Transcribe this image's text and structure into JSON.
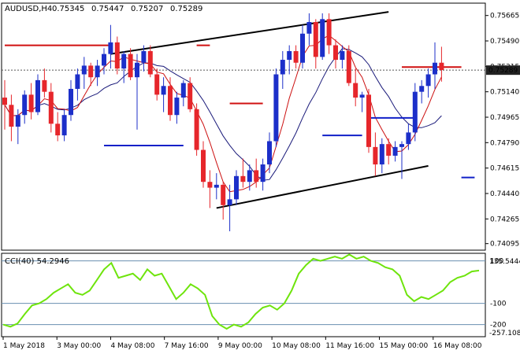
{
  "header": {
    "symbol": "AUDUSD,H4",
    "open": "0.75345",
    "high": "0.75447",
    "low": "0.75207",
    "close": "0.75289"
  },
  "cci_panel": {
    "label": "CCI(40) 54.2946",
    "max_label": "135.5444",
    "min_label": "-257.1088"
  },
  "colors": {
    "bull": "#1c2fc9",
    "bear": "#e6262b",
    "cci": "#6ee40c",
    "ma_fast": "#cc1010",
    "ma_slow": "#1a1a7a",
    "trendline": "#000000",
    "red_level": "#d01010",
    "blue_level": "#1020c8",
    "current_price_bg": "#222222"
  },
  "chart_data": [
    {
      "type": "candlestick",
      "symbol": "AUDUSD",
      "timeframe": "H4",
      "ylim": [
        0.7405,
        0.7575
      ],
      "y_ticks": [
        "0.75665",
        "0.75490",
        "0.75315",
        "0.75140",
        "0.74965",
        "0.74790",
        "0.74615",
        "0.74440",
        "0.74265",
        "0.74095"
      ],
      "x_ticks": [
        "1 May 2018",
        "3 May 00:00",
        "4 May 08:00",
        "7 May 16:00",
        "9 May 00:00",
        "10 May 08:00",
        "11 May 16:00",
        "15 May 00:00",
        "16 May 08:00"
      ],
      "current_price": "0.75289",
      "ohlc": [
        [
          0.751,
          0.7522,
          0.7488,
          0.7505
        ],
        [
          0.7505,
          0.7512,
          0.748,
          0.749
        ],
        [
          0.749,
          0.7502,
          0.7478,
          0.7498
        ],
        [
          0.7498,
          0.7515,
          0.7492,
          0.7512
        ],
        [
          0.7512,
          0.752,
          0.7495,
          0.75
        ],
        [
          0.75,
          0.7526,
          0.7498,
          0.7522
        ],
        [
          0.7522,
          0.753,
          0.751,
          0.7514
        ],
        [
          0.7514,
          0.752,
          0.7486,
          0.7492
        ],
        [
          0.7492,
          0.75,
          0.748,
          0.7484
        ],
        [
          0.7484,
          0.7502,
          0.748,
          0.7498
        ],
        [
          0.7498,
          0.7522,
          0.7494,
          0.7516
        ],
        [
          0.7516,
          0.753,
          0.7508,
          0.7526
        ],
        [
          0.7526,
          0.7538,
          0.7516,
          0.7532
        ],
        [
          0.7532,
          0.7534,
          0.7518,
          0.7524
        ],
        [
          0.7524,
          0.7536,
          0.7518,
          0.7532
        ],
        [
          0.7532,
          0.7544,
          0.7526,
          0.754
        ],
        [
          0.754,
          0.756,
          0.753,
          0.7548
        ],
        [
          0.7548,
          0.7552,
          0.7526,
          0.753
        ],
        [
          0.753,
          0.7542,
          0.752,
          0.754
        ],
        [
          0.754,
          0.7544,
          0.7522,
          0.7524
        ],
        [
          0.7524,
          0.754,
          0.7488,
          0.7534
        ],
        [
          0.7534,
          0.7546,
          0.7528,
          0.7542
        ],
        [
          0.7542,
          0.7546,
          0.7524,
          0.7526
        ],
        [
          0.7526,
          0.753,
          0.7508,
          0.7512
        ],
        [
          0.7512,
          0.7524,
          0.75,
          0.7518
        ],
        [
          0.7518,
          0.7524,
          0.7494,
          0.7498
        ],
        [
          0.7498,
          0.7514,
          0.7492,
          0.751
        ],
        [
          0.751,
          0.7522,
          0.7504,
          0.752
        ],
        [
          0.752,
          0.7524,
          0.75,
          0.7502
        ],
        [
          0.7502,
          0.7506,
          0.747,
          0.7474
        ],
        [
          0.7474,
          0.748,
          0.7448,
          0.7452
        ],
        [
          0.7452,
          0.746,
          0.7434,
          0.7448
        ],
        [
          0.7448,
          0.7458,
          0.744,
          0.745
        ],
        [
          0.745,
          0.7452,
          0.7426,
          0.7436
        ],
        [
          0.7436,
          0.745,
          0.7418,
          0.744
        ],
        [
          0.744,
          0.746,
          0.7436,
          0.7456
        ],
        [
          0.7456,
          0.7468,
          0.7448,
          0.7452
        ],
        [
          0.7452,
          0.7464,
          0.7446,
          0.746
        ],
        [
          0.746,
          0.7468,
          0.7448,
          0.7452
        ],
        [
          0.7452,
          0.7468,
          0.7446,
          0.7464
        ],
        [
          0.7464,
          0.7486,
          0.7458,
          0.748
        ],
        [
          0.748,
          0.753,
          0.7476,
          0.7526
        ],
        [
          0.7526,
          0.7542,
          0.7516,
          0.7536
        ],
        [
          0.7536,
          0.7546,
          0.7526,
          0.7542
        ],
        [
          0.7542,
          0.7546,
          0.753,
          0.7534
        ],
        [
          0.7534,
          0.756,
          0.753,
          0.7554
        ],
        [
          0.7554,
          0.7568,
          0.7546,
          0.7562
        ],
        [
          0.7562,
          0.7564,
          0.753,
          0.7538
        ],
        [
          0.7538,
          0.7568,
          0.7536,
          0.7564
        ],
        [
          0.7564,
          0.7568,
          0.754,
          0.7546
        ],
        [
          0.7546,
          0.755,
          0.753,
          0.7536
        ],
        [
          0.7536,
          0.7546,
          0.753,
          0.7542
        ],
        [
          0.7542,
          0.7546,
          0.7518,
          0.752
        ],
        [
          0.752,
          0.753,
          0.7504,
          0.751
        ],
        [
          0.751,
          0.7514,
          0.75,
          0.7512
        ],
        [
          0.7512,
          0.7516,
          0.7472,
          0.7476
        ],
        [
          0.7476,
          0.7486,
          0.7456,
          0.7464
        ],
        [
          0.7464,
          0.7482,
          0.7458,
          0.7478
        ],
        [
          0.7478,
          0.7482,
          0.7464,
          0.747
        ],
        [
          0.747,
          0.748,
          0.7466,
          0.7476
        ],
        [
          0.7476,
          0.748,
          0.7454,
          0.7478
        ],
        [
          0.7478,
          0.7492,
          0.7474,
          0.7486
        ],
        [
          0.7486,
          0.752,
          0.748,
          0.7514
        ],
        [
          0.7514,
          0.7522,
          0.7506,
          0.7518
        ],
        [
          0.7518,
          0.753,
          0.751,
          0.7526
        ],
        [
          0.7526,
          0.7548,
          0.7516,
          0.7534
        ],
        [
          0.7534,
          0.7545,
          0.7521,
          0.7529
        ]
      ],
      "annotations": {
        "trendlines": [
          {
            "from": [
              16,
              0.754
            ],
            "to": [
              58,
              0.7569
            ]
          },
          {
            "from": [
              32,
              0.7434
            ],
            "to": [
              64,
              0.7463
            ]
          }
        ],
        "red_levels": [
          {
            "from": 0,
            "to": 16,
            "y": 0.7546
          },
          {
            "from": 29,
            "to": 31,
            "y": 0.7546
          },
          {
            "from": 34,
            "to": 39,
            "y": 0.7506
          },
          {
            "from": 60,
            "to": 69,
            "y": 0.7531
          }
        ],
        "blue_levels": [
          {
            "from": 15,
            "to": 27,
            "y": 0.7477
          },
          {
            "from": 48,
            "to": 54,
            "y": 0.7484
          },
          {
            "from": 55,
            "to": 62,
            "y": 0.7496
          },
          {
            "from": 69,
            "to": 71,
            "y": 0.7455
          }
        ]
      }
    },
    {
      "type": "line",
      "name": "CCI(40)",
      "last_value": 54.2946,
      "ylim": [
        -257.1088,
        135.5444
      ],
      "y_ticks": [
        100,
        -100,
        -200
      ],
      "values": [
        -200,
        -210,
        -195,
        -150,
        -110,
        -100,
        -80,
        -50,
        -30,
        -10,
        -50,
        -60,
        -40,
        10,
        60,
        90,
        20,
        30,
        40,
        10,
        60,
        30,
        40,
        -20,
        -80,
        -50,
        -10,
        -30,
        -60,
        -160,
        -200,
        -220,
        -200,
        -210,
        -190,
        -150,
        -120,
        -110,
        -130,
        -100,
        -40,
        40,
        80,
        110,
        100,
        110,
        120,
        110,
        130,
        110,
        120,
        100,
        90,
        70,
        60,
        30,
        -60,
        -90,
        -70,
        -80,
        -60,
        -40,
        0,
        20,
        30,
        50,
        54.2946
      ]
    }
  ]
}
